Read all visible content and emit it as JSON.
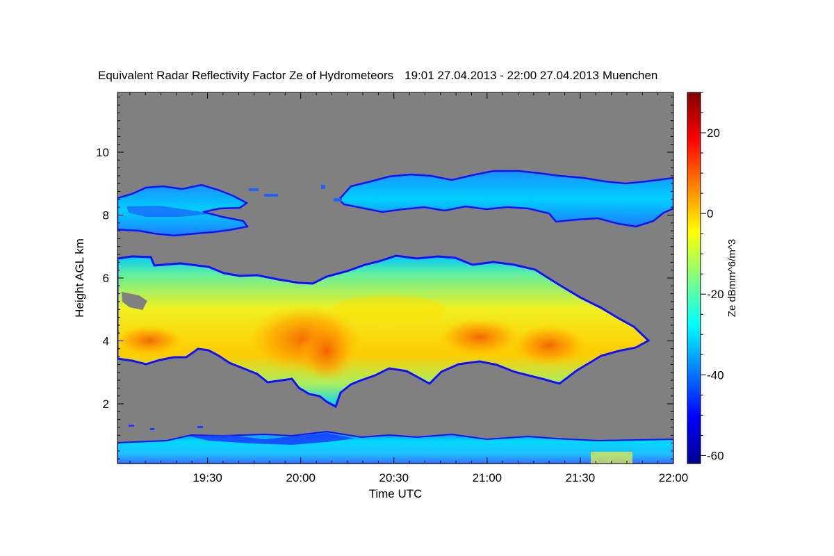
{
  "chart_data": {
    "type": "heatmap",
    "title": "Equivalent Radar Reflectivity Factor Ze of Hydrometeors",
    "period": "19:01 27.04.2013 - 22:00 27.04.2013",
    "location": "Muenchen",
    "xlabel": "Time UTC",
    "ylabel": "Height AGL km",
    "xlim": [
      "19:01",
      "22:00"
    ],
    "ylim": [
      0.1,
      11.9
    ],
    "xticks": [
      "19:30",
      "20:00",
      "20:30",
      "21:00",
      "21:30",
      "22:00"
    ],
    "yticks": [
      2,
      4,
      6,
      8,
      10
    ],
    "colorbar": {
      "label": "Ze dBmm^6/m^3",
      "range": [
        -62,
        30
      ],
      "ticks": [
        -60,
        -40,
        -20,
        0,
        20
      ],
      "colormap": "jet",
      "background_color": "#808080"
    },
    "layers": [
      {
        "feature": "upper cirrus band",
        "time_start": "19:01",
        "time_end": "19:42",
        "base_km": 7.6,
        "top_km": 9.0,
        "ze_peak_dbz": -25
      },
      {
        "feature": "upper cirrus band",
        "time_start": "20:21",
        "time_end": "22:00",
        "base_km": 7.7,
        "top_km": 9.5,
        "ze_peak_dbz": -22
      },
      {
        "feature": "main precipitating cloud",
        "time_start": "19:01",
        "time_end": "21:51",
        "base_km": 2.0,
        "top_km": 6.8,
        "ze_peak_dbz": 8
      },
      {
        "feature": "boundary layer echo",
        "time_start": "19:01",
        "time_end": "22:00",
        "base_km": 0.1,
        "top_km": 1.0,
        "ze_peak_dbz": -5
      }
    ]
  }
}
